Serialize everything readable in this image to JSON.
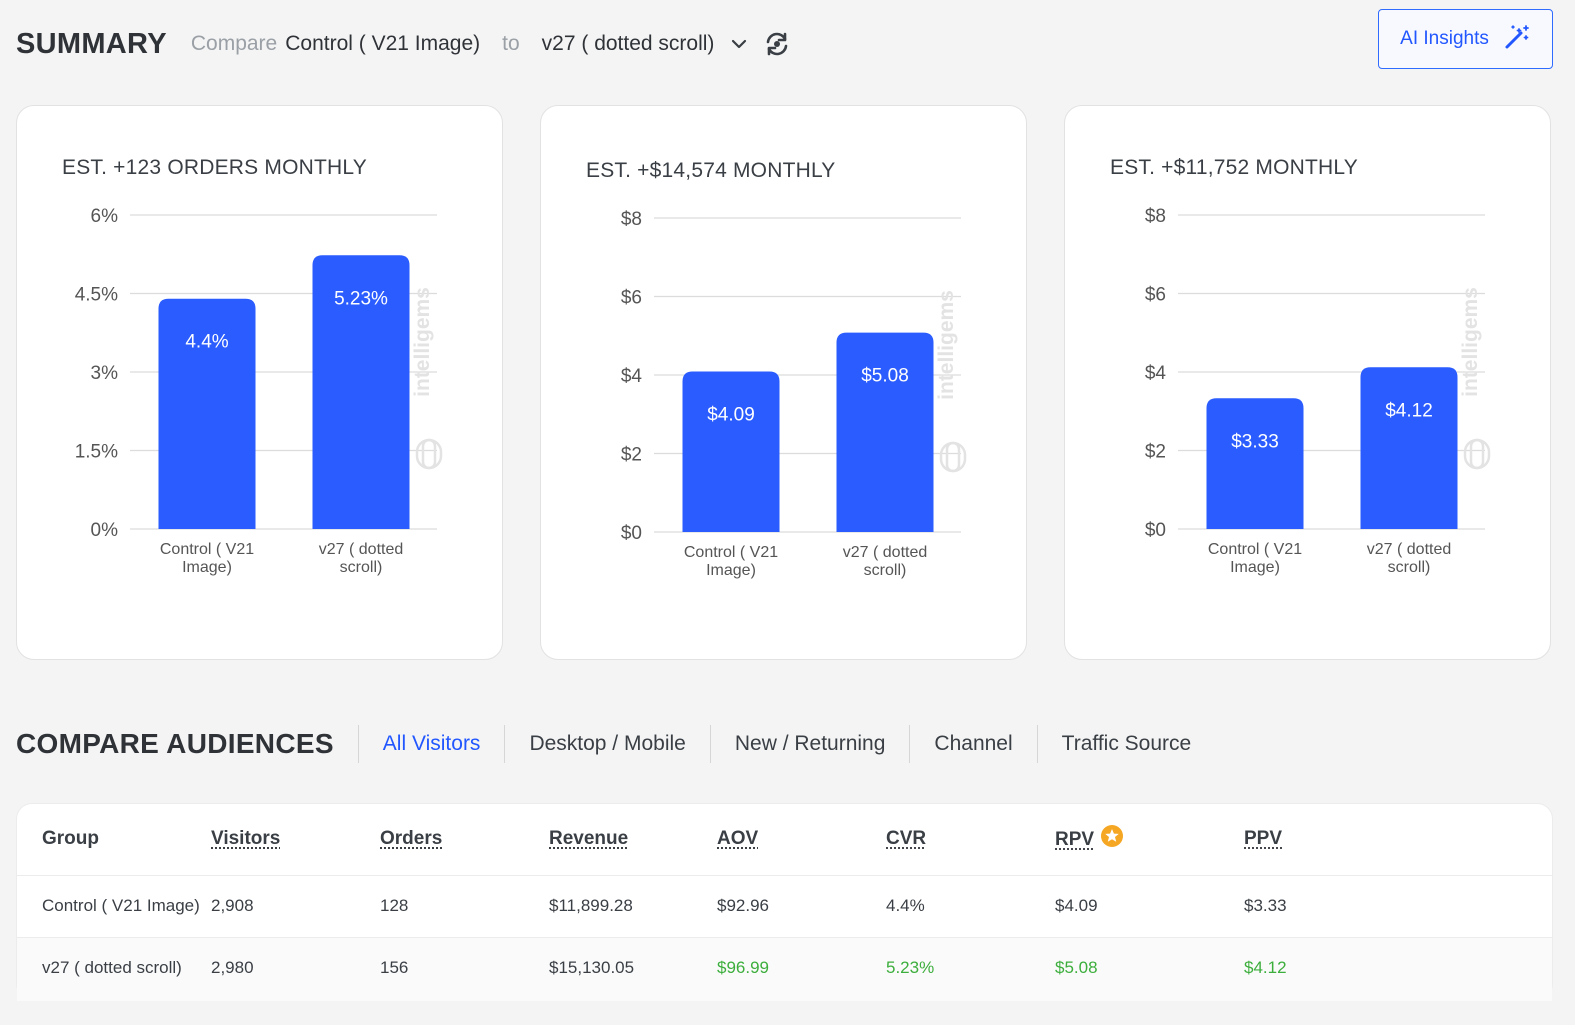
{
  "header": {
    "title": "SUMMARY",
    "compare_label": "Compare",
    "variant_a": "Control ( V21 Image)",
    "to_label": "to",
    "variant_b": "v27 ( dotted scroll)",
    "ai_button": "AI Insights"
  },
  "cards": [
    {
      "title": "EST. +123 ORDERS MONTHLY",
      "watermark": "intelligems",
      "chart_data": {
        "type": "bar",
        "categories": [
          "Control ( V21 Image)",
          "v27 ( dotted scroll)"
        ],
        "category_lines": [
          [
            "Control ( V21",
            "Image)"
          ],
          [
            "v27 ( dotted",
            "scroll)"
          ]
        ],
        "values": [
          4.4,
          5.23
        ],
        "value_labels": [
          "4.4%",
          "5.23%"
        ],
        "ticks": [
          0,
          1.5,
          3,
          4.5,
          6
        ],
        "tick_labels": [
          "0%",
          "1.5%",
          "3%",
          "4.5%",
          "6%"
        ],
        "ylim": [
          0,
          6
        ],
        "color": "#2a5cff"
      }
    },
    {
      "title": "EST. +$14,574 MONTHLY",
      "watermark": "intelligems",
      "chart_data": {
        "type": "bar",
        "categories": [
          "Control ( V21 Image)",
          "v27 ( dotted scroll)"
        ],
        "category_lines": [
          [
            "Control ( V21",
            "Image)"
          ],
          [
            "v27 ( dotted",
            "scroll)"
          ]
        ],
        "values": [
          4.09,
          5.08
        ],
        "value_labels": [
          "$4.09",
          "$5.08"
        ],
        "ticks": [
          0,
          2,
          4,
          6,
          8
        ],
        "tick_labels": [
          "$0",
          "$2",
          "$4",
          "$6",
          "$8"
        ],
        "ylim": [
          0,
          8
        ],
        "color": "#2a5cff"
      }
    },
    {
      "title": "EST. +$11,752 MONTHLY",
      "watermark": "intelligems",
      "chart_data": {
        "type": "bar",
        "categories": [
          "Control ( V21 Image)",
          "v27 ( dotted scroll)"
        ],
        "category_lines": [
          [
            "Control ( V21",
            "Image)"
          ],
          [
            "v27 ( dotted",
            "scroll)"
          ]
        ],
        "values": [
          3.33,
          4.12
        ],
        "value_labels": [
          "$3.33",
          "$4.12"
        ],
        "ticks": [
          0,
          2,
          4,
          6,
          8
        ],
        "tick_labels": [
          "$0",
          "$2",
          "$4",
          "$6",
          "$8"
        ],
        "ylim": [
          0,
          8
        ],
        "color": "#2a5cff"
      }
    }
  ],
  "audiences": {
    "title": "COMPARE AUDIENCES",
    "tabs": [
      {
        "label": "All Visitors",
        "active": true
      },
      {
        "label": "Desktop / Mobile",
        "active": false
      },
      {
        "label": "New / Returning",
        "active": false
      },
      {
        "label": "Channel",
        "active": false
      },
      {
        "label": "Traffic Source",
        "active": false
      }
    ]
  },
  "table": {
    "columns": [
      "Group",
      "Visitors",
      "Orders",
      "Revenue",
      "AOV",
      "CVR",
      "RPV",
      "PPV"
    ],
    "rows": [
      {
        "cells": [
          "Control ( V21 Image)",
          "2,908",
          "128",
          "$11,899.28",
          "$92.96",
          "4.4%",
          "$4.09",
          "$3.33"
        ],
        "highlight": [
          false,
          false,
          false,
          false,
          false,
          false,
          false,
          false
        ]
      },
      {
        "cells": [
          "v27 ( dotted scroll)",
          "2,980",
          "156",
          "$15,130.05",
          "$96.99",
          "5.23%",
          "$5.08",
          "$4.12"
        ],
        "highlight": [
          false,
          false,
          false,
          false,
          true,
          true,
          true,
          true
        ]
      }
    ],
    "highlight_color": "#3cae3c",
    "star_column": "RPV"
  }
}
